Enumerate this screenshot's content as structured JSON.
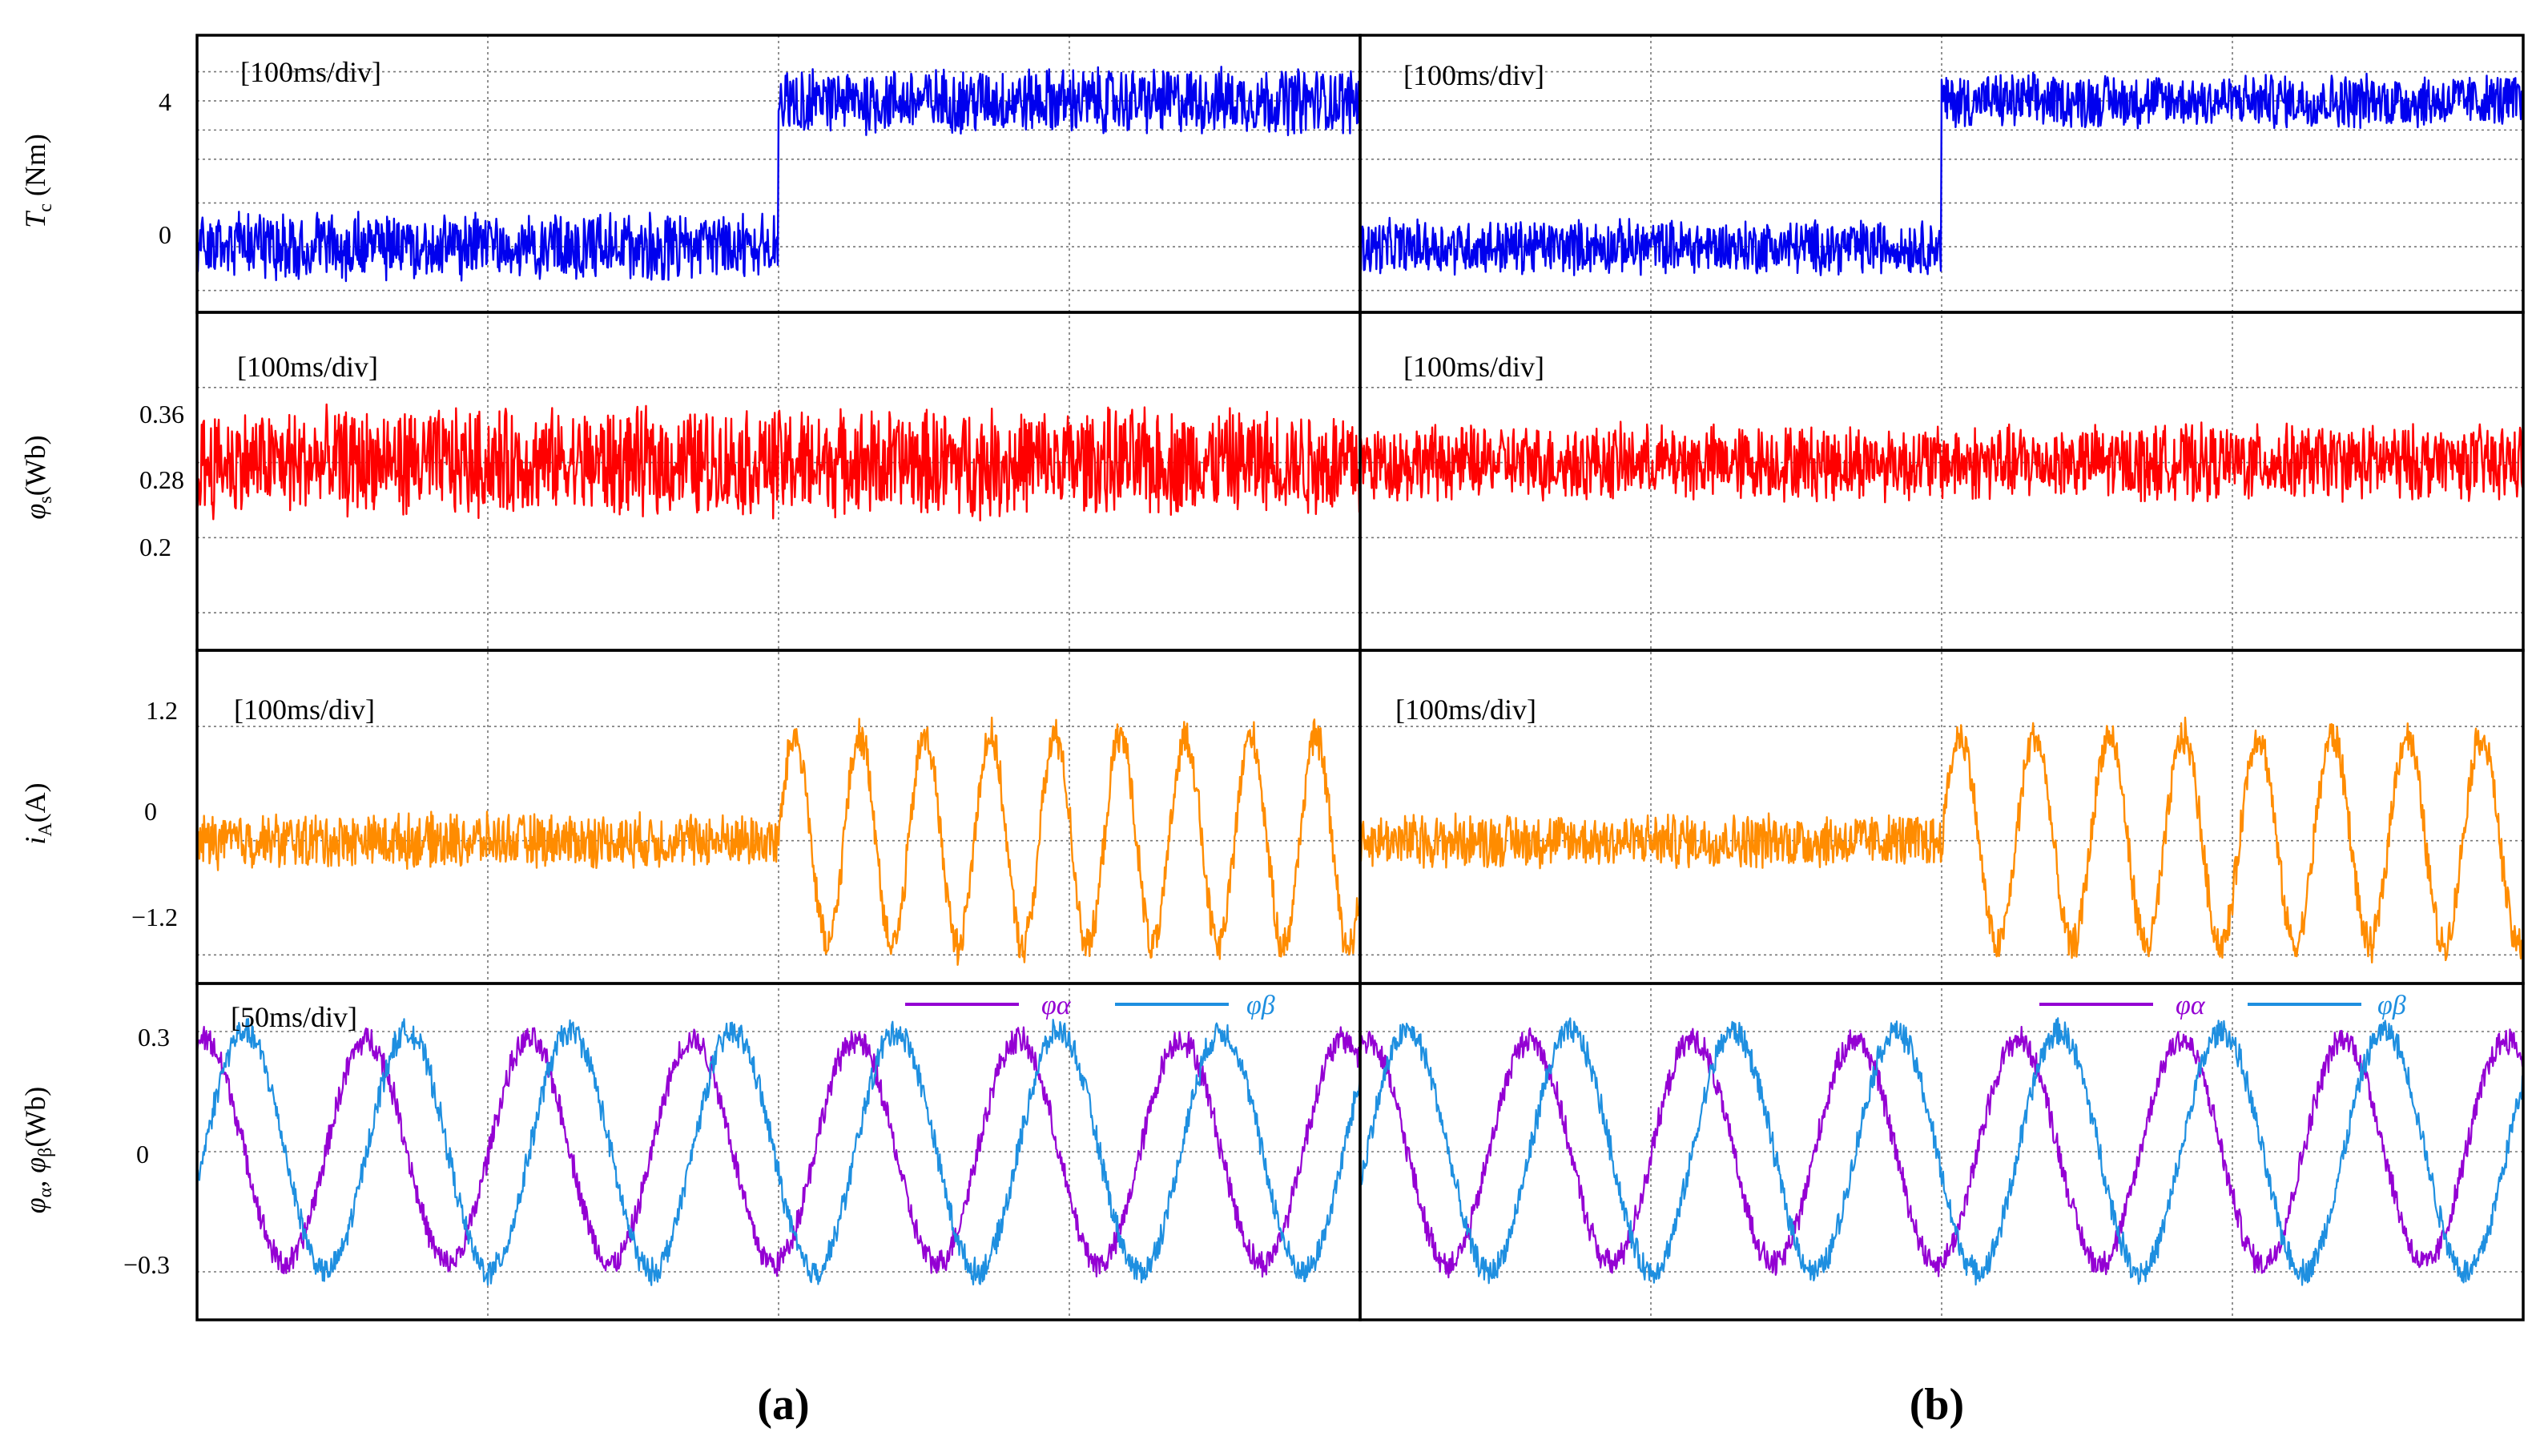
{
  "figure": {
    "panel_labels": [
      "(a)",
      "(b)"
    ]
  },
  "rows": [
    {
      "key": "torque",
      "ylabel": "Tc (Nm)",
      "ylabel_main": "T",
      "ylabel_sub": "c",
      "ylabel_tail": " (Nm)",
      "time_div": "[100ms/div]",
      "ticks": [
        "4",
        "0"
      ]
    },
    {
      "key": "flux_mag",
      "ylabel": "φs(Wb)",
      "ylabel_main": "φ",
      "ylabel_sub": "s",
      "ylabel_tail": "(Wb)",
      "time_div": "[100ms/div]",
      "ticks": [
        "0.36",
        "0.28",
        "0.2"
      ]
    },
    {
      "key": "current",
      "ylabel": "iA(A)",
      "ylabel_main": "i",
      "ylabel_sub": "A",
      "ylabel_tail": "(A)",
      "time_div": "[100ms/div]",
      "ticks": [
        "1.2",
        "0",
        "−1.2"
      ]
    },
    {
      "key": "flux_ab",
      "ylabel": "φα, φβ(Wb)",
      "ylabel_main": "φ",
      "ylabel_sub": "α",
      "ylabel_mid": ", φ",
      "ylabel_sub2": "β",
      "ylabel_tail": "(Wb)",
      "time_div": "[50ms/div]",
      "ticks": [
        "0.3",
        "0",
        "−0.3"
      ],
      "legend": [
        "φα",
        "φβ"
      ]
    }
  ],
  "chart_data": [
    {
      "panel": "(a)",
      "row": "torque",
      "type": "line",
      "x_unit": "ms",
      "xlim": [
        0,
        500
      ],
      "ylim": [
        -1.8,
        5.8
      ],
      "series": [
        {
          "name": "Tc",
          "color": "#0000ee",
          "step": {
            "t": 250,
            "from": 0,
            "to": 4
          },
          "noise_pp": 1.6
        }
      ]
    },
    {
      "panel": "(b)",
      "row": "torque",
      "type": "line",
      "x_unit": "ms",
      "xlim": [
        0,
        500
      ],
      "ylim": [
        -1.8,
        5.8
      ],
      "series": [
        {
          "name": "Tc",
          "color": "#0000ee",
          "step": {
            "t": 250,
            "from": 0,
            "to": 4
          },
          "noise_pp": 1.3
        }
      ]
    },
    {
      "panel": "(a)",
      "row": "flux_mag",
      "type": "line",
      "x_unit": "ms",
      "xlim": [
        0,
        500
      ],
      "ylim": [
        0.08,
        0.44
      ],
      "series": [
        {
          "name": "φs",
          "color": "#ff0000",
          "mean": 0.28,
          "noise_pp": 0.1
        }
      ]
    },
    {
      "panel": "(b)",
      "row": "flux_mag",
      "type": "line",
      "x_unit": "ms",
      "xlim": [
        0,
        500
      ],
      "ylim": [
        0.08,
        0.44
      ],
      "series": [
        {
          "name": "φs",
          "color": "#ff0000",
          "mean": 0.28,
          "noise_pp": 0.07
        }
      ]
    },
    {
      "panel": "(a)",
      "row": "current",
      "type": "line",
      "x_unit": "ms",
      "xlim": [
        0,
        500
      ],
      "ylim": [
        -1.5,
        2.0
      ],
      "series": [
        {
          "name": "iA",
          "color": "#ff8c00",
          "pre_noise_pp": 0.5,
          "step_t": 250,
          "amplitude": 1.1,
          "period_ms": 28
        }
      ]
    },
    {
      "panel": "(b)",
      "row": "current",
      "type": "line",
      "x_unit": "ms",
      "xlim": [
        0,
        500
      ],
      "ylim": [
        -1.5,
        2.0
      ],
      "series": [
        {
          "name": "iA",
          "color": "#ff8c00",
          "pre_noise_pp": 0.5,
          "step_t": 250,
          "amplitude": 1.1,
          "period_ms": 32
        }
      ]
    },
    {
      "panel": "(a)",
      "row": "flux_ab",
      "type": "line",
      "x_unit": "ms",
      "xlim": [
        0,
        250
      ],
      "ylim": [
        -0.42,
        0.42
      ],
      "series": [
        {
          "name": "φα",
          "color": "#9400d3",
          "amplitude": 0.28,
          "period_ms": 35
        },
        {
          "name": "φβ",
          "color": "#1e8fe0",
          "amplitude": 0.3,
          "period_ms": 35,
          "lag": 0.25
        }
      ]
    },
    {
      "panel": "(b)",
      "row": "flux_ab",
      "type": "line",
      "x_unit": "ms",
      "xlim": [
        0,
        250
      ],
      "ylim": [
        -0.42,
        0.42
      ],
      "series": [
        {
          "name": "φα",
          "color": "#9400d3",
          "amplitude": 0.28,
          "period_ms": 35
        },
        {
          "name": "φβ",
          "color": "#1e8fe0",
          "amplitude": 0.3,
          "period_ms": 35,
          "lag": 0.25
        }
      ]
    }
  ]
}
